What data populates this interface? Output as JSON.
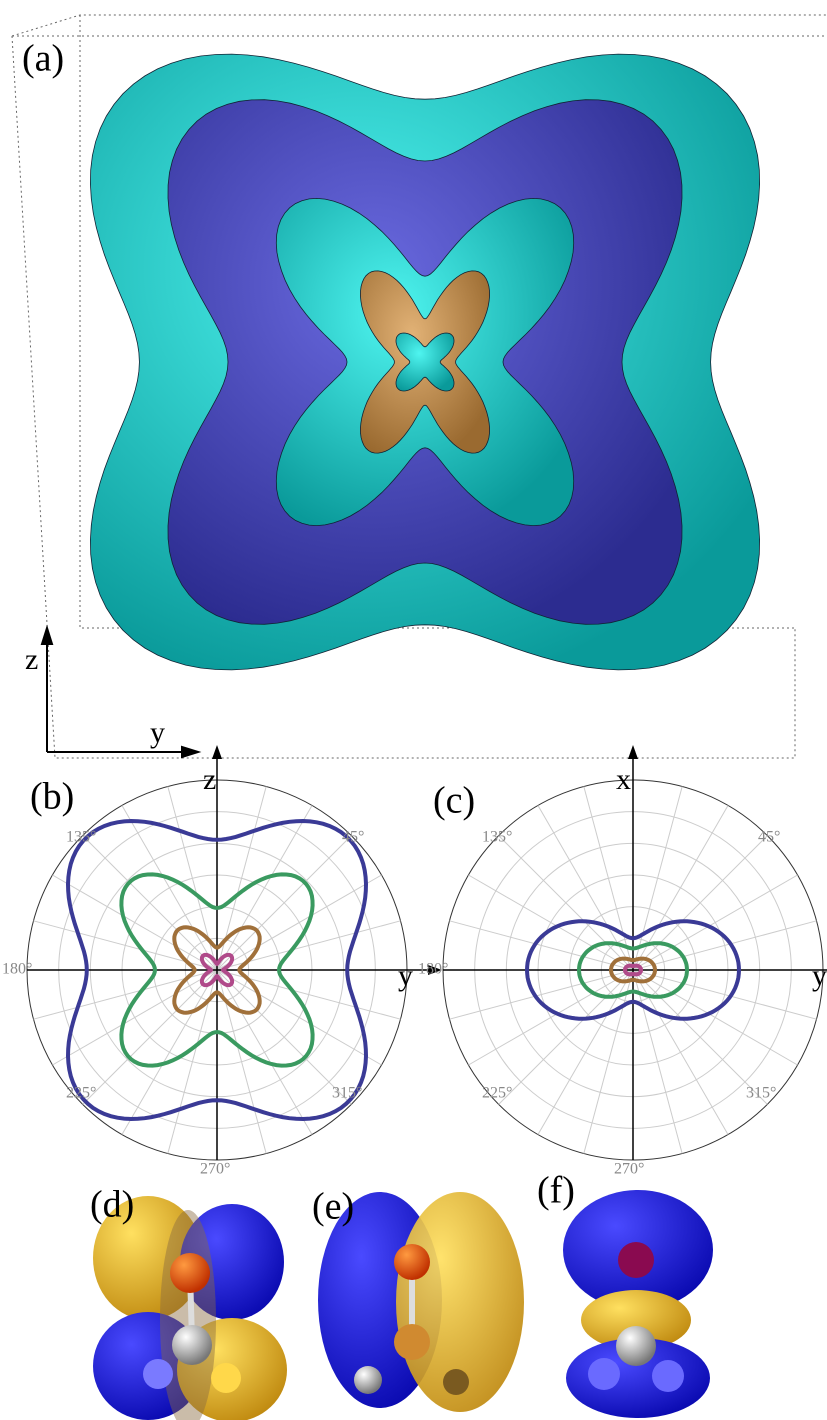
{
  "panels": [
    {
      "label": "(a)",
      "axes": [
        "z",
        "y"
      ]
    },
    {
      "label": "(b)",
      "axes": [
        "z",
        "y"
      ],
      "angles": [
        "45°",
        "135°",
        "180°",
        "225°",
        "270°",
        "315°"
      ]
    },
    {
      "label": "(c)",
      "axes": [
        "x",
        "y"
      ],
      "angles": [
        "45°",
        "135°",
        "180°",
        "225°",
        "270°",
        "315°"
      ]
    },
    {
      "label": "(d)"
    },
    {
      "label": "(e)"
    },
    {
      "label": "(f)"
    }
  ]
}
